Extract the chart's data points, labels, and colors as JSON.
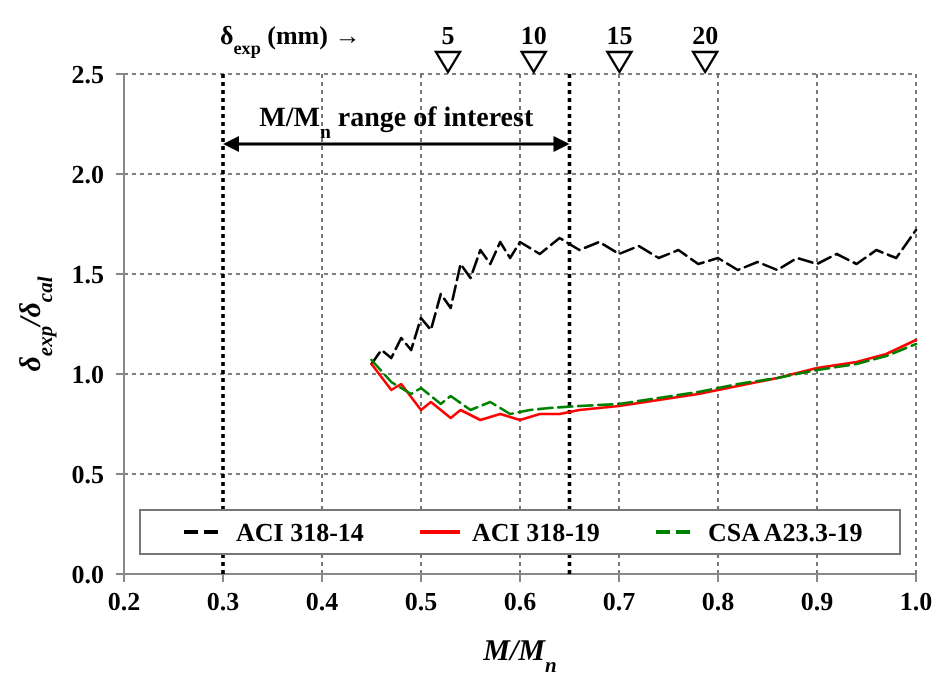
{
  "chart_data": {
    "type": "line",
    "xlabel": "M/M$_{n}$",
    "ylabel": "δ$_{exp}$/δ$_{cal}$",
    "xlim": [
      0.2,
      1.0
    ],
    "xticks": [
      {
        "value": 0.2,
        "label": "0.2"
      },
      {
        "value": 0.3,
        "label": "0.3"
      },
      {
        "value": 0.4,
        "label": "0.4"
      },
      {
        "value": 0.5,
        "label": "0.5"
      },
      {
        "value": 0.6,
        "label": "0.6"
      },
      {
        "value": 0.7,
        "label": "0.7"
      },
      {
        "value": 0.8,
        "label": "0.8"
      },
      {
        "value": 0.9,
        "label": "0.9"
      },
      {
        "value": 1.0,
        "label": "1.0"
      }
    ],
    "ylim": [
      0,
      2.5
    ],
    "yticks": [
      {
        "value": 0,
        "label": "0.0"
      },
      {
        "value": 0.5,
        "label": "0.5"
      },
      {
        "value": 1.0,
        "label": "1.0"
      },
      {
        "value": 1.5,
        "label": "1.5"
      },
      {
        "value": 2.0,
        "label": "2.0"
      },
      {
        "value": 2.5,
        "label": "2.5"
      }
    ],
    "grid": true,
    "legend": "bottom",
    "marker": "none",
    "ref_lines": [
      {
        "axis": "x",
        "value": 0.3,
        "label": null,
        "line_style": "dotted",
        "color": "#000000"
      },
      {
        "axis": "x",
        "value": 0.65,
        "label": null,
        "line_style": "dotted",
        "color": "#000000"
      }
    ],
    "x2label": "δ$_{exp}$ (mm) →",
    "x2lim": [
      -13.9,
      32.3
    ],
    "x2ticks": [
      5,
      10,
      15,
      20
    ],
    "annotations": [
      "M/M$_{n}$ range of interest"
    ],
    "series": [
      {
        "name": "ACI 318-14",
        "color": "#000000",
        "line_style": "dashed",
        "x": [
          0.45,
          0.46,
          0.47,
          0.48,
          0.49,
          0.5,
          0.51,
          0.52,
          0.53,
          0.54,
          0.55,
          0.56,
          0.57,
          0.58,
          0.59,
          0.6,
          0.62,
          0.64,
          0.66,
          0.68,
          0.7,
          0.72,
          0.74,
          0.76,
          0.78,
          0.8,
          0.82,
          0.84,
          0.86,
          0.88,
          0.9,
          0.92,
          0.94,
          0.96,
          0.98,
          1.0
        ],
        "values": [
          1.05,
          1.12,
          1.08,
          1.18,
          1.12,
          1.28,
          1.22,
          1.4,
          1.33,
          1.55,
          1.48,
          1.62,
          1.55,
          1.66,
          1.58,
          1.66,
          1.6,
          1.68,
          1.62,
          1.66,
          1.6,
          1.64,
          1.58,
          1.62,
          1.55,
          1.58,
          1.52,
          1.56,
          1.52,
          1.58,
          1.55,
          1.6,
          1.55,
          1.62,
          1.58,
          1.72
        ]
      },
      {
        "name": "ACI 318-19",
        "color": "#ff0000",
        "line_style": "solid",
        "x": [
          0.45,
          0.47,
          0.48,
          0.5,
          0.51,
          0.53,
          0.54,
          0.56,
          0.58,
          0.6,
          0.62,
          0.64,
          0.66,
          0.7,
          0.74,
          0.78,
          0.82,
          0.86,
          0.9,
          0.94,
          0.97,
          1.0
        ],
        "values": [
          1.05,
          0.92,
          0.95,
          0.82,
          0.86,
          0.78,
          0.82,
          0.77,
          0.8,
          0.77,
          0.8,
          0.8,
          0.82,
          0.84,
          0.87,
          0.9,
          0.94,
          0.98,
          1.03,
          1.06,
          1.1,
          1.17
        ]
      },
      {
        "name": "CSA A23.3-19",
        "color": "#008000",
        "line_style": "dashed",
        "x": [
          0.45,
          0.47,
          0.49,
          0.5,
          0.52,
          0.53,
          0.55,
          0.57,
          0.59,
          0.61,
          0.63,
          0.66,
          0.7,
          0.74,
          0.78,
          0.82,
          0.86,
          0.9,
          0.94,
          0.97,
          1.0
        ],
        "values": [
          1.07,
          0.96,
          0.9,
          0.93,
          0.85,
          0.89,
          0.82,
          0.86,
          0.8,
          0.82,
          0.83,
          0.84,
          0.85,
          0.88,
          0.91,
          0.95,
          0.98,
          1.02,
          1.05,
          1.09,
          1.15
        ]
      }
    ]
  }
}
